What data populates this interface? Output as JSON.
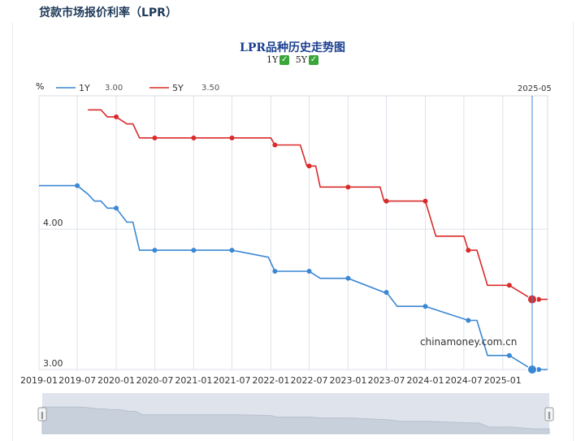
{
  "page": {
    "heading": "贷款市场报价利率（LPR）"
  },
  "toggles": {
    "items": [
      {
        "label": "1Y",
        "check_icon": "check-icon"
      },
      {
        "label": "5Y",
        "check_icon": "check-icon"
      }
    ]
  },
  "watermark": "chinamoney.com.cn",
  "legend": [
    {
      "name": "1Y",
      "value": "3.00",
      "color": "#3a87d4"
    },
    {
      "name": "5Y",
      "value": "3.50",
      "color": "#d92b2b"
    }
  ],
  "crosshair_label": "2025-05",
  "chart_data": {
    "type": "line",
    "title": "LPR品种历史走势图",
    "ylabel": "%",
    "ylim": [
      3.0,
      5.0
    ],
    "yticks": [
      {
        "value": 3.0,
        "label": "3.00"
      },
      {
        "value": 4.0,
        "label": "4.00"
      }
    ],
    "xlim": [
      "2019-01-01",
      "2025-08-01"
    ],
    "xticks": [
      "2019-01",
      "2019-07",
      "2020-01",
      "2020-07",
      "2021-01",
      "2021-07",
      "2022-01",
      "2022-07",
      "2023-01",
      "2023-07",
      "2024-01",
      "2024-07",
      "2025-01"
    ],
    "grid": true,
    "series": [
      {
        "name": "1Y",
        "color": "#3a87d4",
        "points": [
          [
            "2019-01-01",
            4.31
          ],
          [
            "2019-07-01",
            4.31
          ],
          [
            "2019-08-20",
            4.25
          ],
          [
            "2019-09-20",
            4.2
          ],
          [
            "2019-10-21",
            4.2
          ],
          [
            "2019-11-20",
            4.15
          ],
          [
            "2020-01-01",
            4.15
          ],
          [
            "2020-02-20",
            4.05
          ],
          [
            "2020-03-20",
            4.05
          ],
          [
            "2020-04-20",
            3.85
          ],
          [
            "2020-07-01",
            3.85
          ],
          [
            "2021-01-01",
            3.85
          ],
          [
            "2021-07-01",
            3.85
          ],
          [
            "2021-12-20",
            3.8
          ],
          [
            "2022-01-20",
            3.7
          ],
          [
            "2022-07-01",
            3.7
          ],
          [
            "2022-08-22",
            3.65
          ],
          [
            "2023-01-01",
            3.65
          ],
          [
            "2023-06-20",
            3.55
          ],
          [
            "2023-07-01",
            3.55
          ],
          [
            "2023-08-21",
            3.45
          ],
          [
            "2024-01-01",
            3.45
          ],
          [
            "2024-07-22",
            3.35
          ],
          [
            "2024-09-01",
            3.35
          ],
          [
            "2024-10-21",
            3.1
          ],
          [
            "2025-02-01",
            3.1
          ],
          [
            "2025-05-20",
            3.0
          ],
          [
            "2025-06-20",
            3.0
          ],
          [
            "2025-08-01",
            3.0
          ]
        ],
        "markers": [
          "2019-07-01",
          "2020-01-01",
          "2020-07-01",
          "2021-01-01",
          "2021-07-01",
          "2022-01-20",
          "2022-07-01",
          "2023-01-01",
          "2023-07-01",
          "2024-01-01",
          "2024-07-22",
          "2025-02-01",
          "2025-06-20"
        ],
        "highlight": "2025-05-20"
      },
      {
        "name": "5Y",
        "color": "#d92b2b",
        "points": [
          [
            "2019-08-20",
            4.85
          ],
          [
            "2019-10-21",
            4.85
          ],
          [
            "2019-11-20",
            4.8
          ],
          [
            "2020-01-01",
            4.8
          ],
          [
            "2020-02-20",
            4.75
          ],
          [
            "2020-03-20",
            4.75
          ],
          [
            "2020-04-20",
            4.65
          ],
          [
            "2020-07-01",
            4.65
          ],
          [
            "2021-01-01",
            4.65
          ],
          [
            "2021-07-01",
            4.65
          ],
          [
            "2022-01-01",
            4.65
          ],
          [
            "2022-01-20",
            4.6
          ],
          [
            "2022-05-20",
            4.6
          ],
          [
            "2022-06-20",
            4.45
          ],
          [
            "2022-08-01",
            4.45
          ],
          [
            "2022-08-22",
            4.3
          ],
          [
            "2023-01-01",
            4.3
          ],
          [
            "2023-06-01",
            4.3
          ],
          [
            "2023-06-20",
            4.2
          ],
          [
            "2024-01-01",
            4.2
          ],
          [
            "2024-02-20",
            3.95
          ],
          [
            "2024-07-01",
            3.95
          ],
          [
            "2024-07-22",
            3.85
          ],
          [
            "2024-09-01",
            3.85
          ],
          [
            "2024-10-21",
            3.6
          ],
          [
            "2025-02-01",
            3.6
          ],
          [
            "2025-05-20",
            3.5
          ],
          [
            "2025-06-20",
            3.5
          ],
          [
            "2025-08-01",
            3.5
          ]
        ],
        "markers": [
          "2020-01-01",
          "2020-07-01",
          "2021-01-01",
          "2021-07-01",
          "2022-01-20",
          "2022-07-01",
          "2023-01-01",
          "2023-07-01",
          "2024-01-01",
          "2024-07-22",
          "2025-02-01",
          "2025-06-20"
        ],
        "highlight": "2025-05-20"
      }
    ]
  }
}
